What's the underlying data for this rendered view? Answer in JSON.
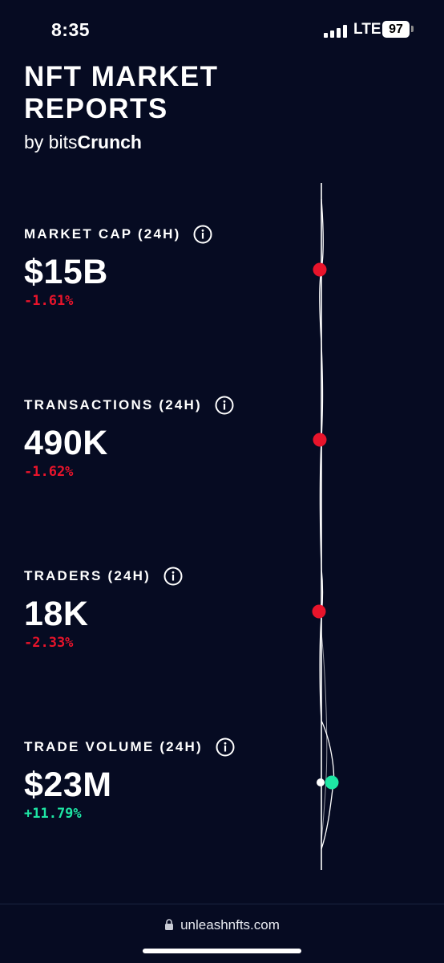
{
  "status_bar": {
    "time": "8:35",
    "network": "LTE",
    "battery": "97"
  },
  "header": {
    "title": "NFT MARKET REPORTS",
    "by_prefix": "by bits",
    "by_brand": "Crunch"
  },
  "metrics": [
    {
      "label": "MARKET CAP (24H)",
      "value": "$15B",
      "change": "-1.61%",
      "trend": "down"
    },
    {
      "label": "TRANSACTIONS (24H)",
      "value": "490K",
      "change": "-1.62%",
      "trend": "down"
    },
    {
      "label": "TRADERS (24H)",
      "value": "18K",
      "change": "-2.33%",
      "trend": "down"
    },
    {
      "label": "TRADE VOLUME (24H)",
      "value": "$23M",
      "change": "+11.79%",
      "trend": "up"
    }
  ],
  "colors": {
    "background": "#060b22",
    "negative": "#e8142b",
    "positive": "#1ee6a4"
  },
  "icons": {
    "info": "info-icon",
    "lock": "lock-icon"
  },
  "browser": {
    "url": "unleashnfts.com"
  }
}
